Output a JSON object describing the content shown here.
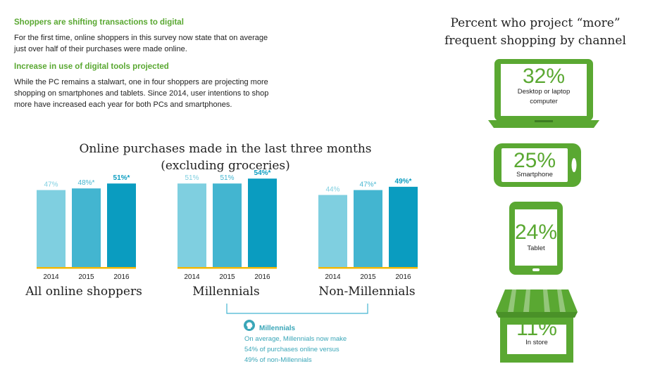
{
  "intro": {
    "heading1": "Shoppers are shifting transactions to digital",
    "para1_line1": "For the first time, online shoppers in this survey now state that on average",
    "para1_line2": "just over half of their purchases were made online.",
    "heading2": "Increase in use of digital tools projected",
    "para2_line1": "While the PC remains a stalwart, one in four shoppers are projecting more",
    "para2_line2": "shopping on smartphones and tablets. Since 2014, user intentions to shop",
    "para2_line3": "more have increased each year for both PCs and smartphones."
  },
  "chart_data": {
    "type": "bar",
    "title_line1": "Online purchases made in the last three months",
    "title_line2": "(excluding groceries)",
    "categories": [
      "2014",
      "2015",
      "2016"
    ],
    "groups": [
      {
        "name": "All online shoppers",
        "values": [
          47,
          48,
          51
        ],
        "labels": [
          "47%",
          "48%*",
          "51%*"
        ]
      },
      {
        "name": "Millennials",
        "values": [
          51,
          51,
          54
        ],
        "labels": [
          "51%",
          "51%",
          "54%*"
        ]
      },
      {
        "name": "Non-Millennials",
        "values": [
          44,
          47,
          49
        ],
        "labels": [
          "44%",
          "47%*",
          "49%*"
        ]
      }
    ],
    "colors": [
      "#7fcfe0",
      "#43b5d0",
      "#0a9cc0"
    ],
    "baseline_color": "#f2b705"
  },
  "note": {
    "heading": "Millennials",
    "line1": "On average, Millennials now make",
    "line2": "54% of purchases online versus",
    "line3": "49% of non-Millennials"
  },
  "channels": {
    "title_line1": "Percent who project “more”",
    "title_line2": "frequent shopping by channel",
    "items": [
      {
        "icon": "laptop-icon",
        "percent": "32%",
        "caption_line1": "Desktop or laptop",
        "caption_line2": "computer"
      },
      {
        "icon": "smartphone-icon",
        "percent": "25%",
        "caption_line1": "Smartphone",
        "caption_line2": ""
      },
      {
        "icon": "tablet-icon",
        "percent": "24%",
        "caption_line1": "Tablet",
        "caption_line2": ""
      },
      {
        "icon": "store-icon",
        "percent": "11%",
        "caption_line1": "In store",
        "caption_line2": ""
      }
    ],
    "accent": "#5aa832"
  }
}
